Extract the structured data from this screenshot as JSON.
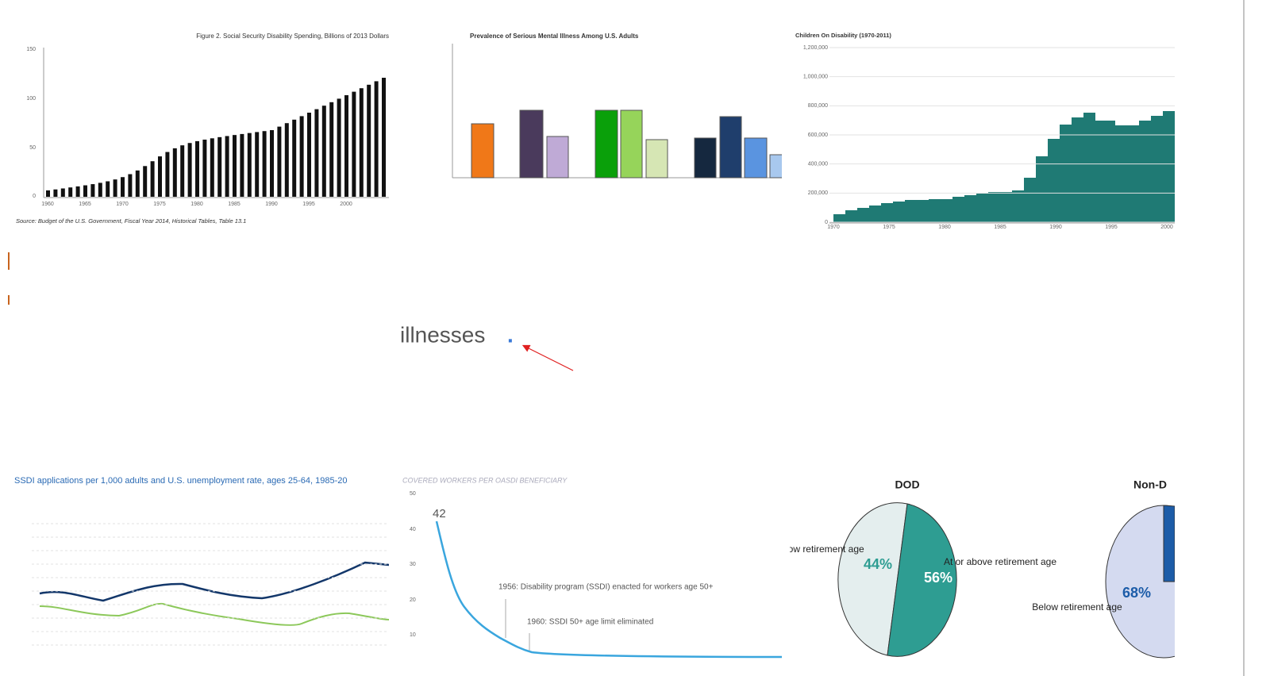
{
  "results": [
    {
      "title": "Figure 2. Social Security Disability Spending, Billions of 2013 Dollars",
      "yticks": [
        "150",
        "100",
        "50",
        "0"
      ],
      "xticks": [
        "1960",
        "1965",
        "1970",
        "1975",
        "1980",
        "1985",
        "1990",
        "1995",
        "2000"
      ],
      "source": "Source: Budget of the U.S. Government, Fiscal Year 2014, Historical Tables, Table 13.1"
    },
    {
      "title": "Prevalence of Serious Mental Illness Among U.S. Adults"
    },
    {
      "title": "Children On Disability (1970-2011)",
      "yticks": [
        "1,200,000",
        "1,000,000",
        "800,000",
        "600,000",
        "400,000",
        "200,000",
        "0"
      ],
      "xticks": [
        "1970",
        "1975",
        "1980",
        "1985",
        "1990",
        "1995",
        "2000"
      ]
    },
    {
      "title": "SSDI applications per 1,000 adults and U.S. unemployment rate, ages 25-64, 1985-20"
    },
    {
      "title": "COVERED WORKERS PER OASDI BENEFICIARY",
      "yticks": [
        "50",
        "40",
        "30",
        "20",
        "10"
      ],
      "annotations": [
        "42",
        "1956: Disability program (SSDI) enacted for workers age 50+",
        "1960: SSDI 50+ age limit eliminated"
      ]
    },
    {
      "title": "DOD",
      "labels": [
        "Below retirement age",
        "44%",
        "56%",
        "At or above retirement age"
      ]
    },
    {
      "title": "Non-D",
      "labels": [
        "Below retirement age",
        "68%"
      ]
    }
  ],
  "caption": "illnesses",
  "caption_mark": "."
}
